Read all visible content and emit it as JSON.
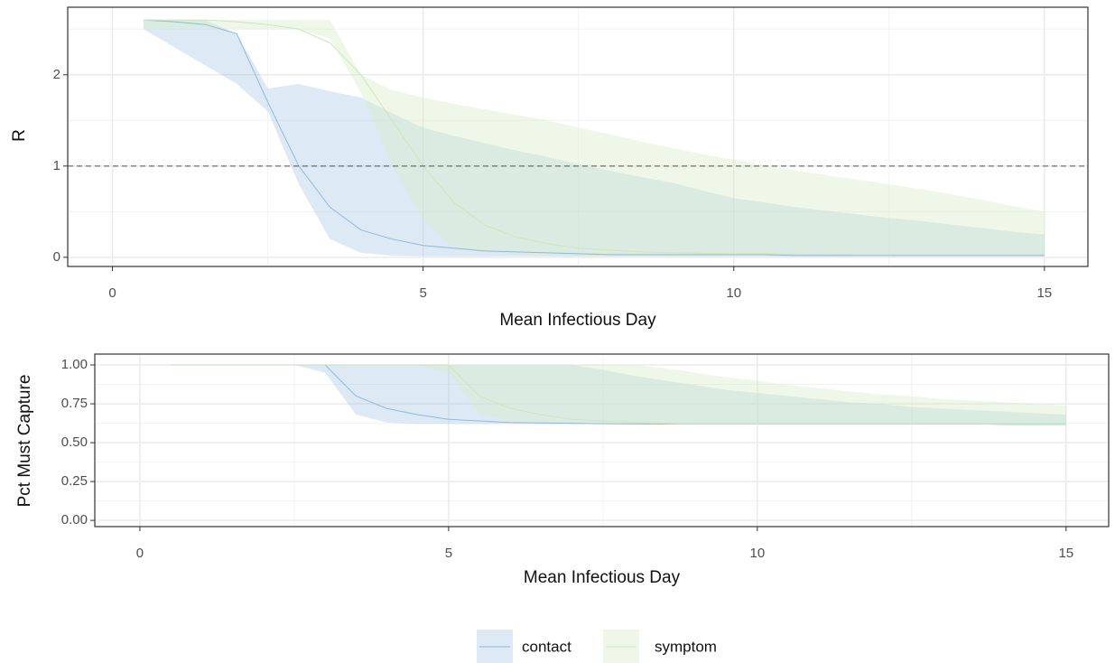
{
  "chart_data": [
    {
      "type": "line",
      "xlabel": "Mean Infectious Day",
      "ylabel": "R",
      "x": [
        0.5,
        1,
        1.5,
        2,
        2.5,
        3,
        3.5,
        4,
        4.5,
        5,
        5.5,
        6,
        6.5,
        7,
        7.5,
        8,
        8.5,
        9,
        9.5,
        10,
        10.5,
        11,
        11.5,
        12,
        12.5,
        13,
        13.5,
        14,
        14.5,
        15
      ],
      "xlim": [
        -0.72,
        15.7
      ],
      "ylim": [
        -0.1,
        2.74
      ],
      "xticks": [
        0,
        5,
        10,
        15
      ],
      "yticks": [
        0,
        1,
        2
      ],
      "minor_xticks": [
        2.5,
        7.5,
        12.5
      ],
      "minor_yticks": [
        0.5,
        1.5,
        2.5
      ],
      "grid": true,
      "hline": 1,
      "series": [
        {
          "name": "contact",
          "color": "#94b8dc",
          "fill": "#a6c8e8",
          "values": [
            2.6,
            2.58,
            2.55,
            2.45,
            1.7,
            1.0,
            0.55,
            0.3,
            0.2,
            0.13,
            0.1,
            0.07,
            0.06,
            0.05,
            0.04,
            0.03,
            0.03,
            0.03,
            0.03,
            0.03,
            0.03,
            0.02,
            0.02,
            0.02,
            0.02,
            0.02,
            0.02,
            0.02,
            0.02,
            0.02
          ],
          "lower": [
            2.5,
            2.3,
            2.1,
            1.9,
            1.6,
            0.8,
            0.2,
            0.05,
            0.02,
            0.01,
            0.01,
            0.01,
            0.01,
            0.01,
            0.01,
            0.01,
            0.01,
            0.01,
            0.01,
            0.01,
            0.01,
            0.01,
            0.01,
            0.01,
            0.01,
            0.01,
            0.01,
            0.01,
            0.01,
            0.01
          ],
          "upper": [
            2.6,
            2.6,
            2.6,
            2.45,
            1.85,
            1.9,
            1.82,
            1.75,
            1.58,
            1.42,
            1.33,
            1.25,
            1.17,
            1.1,
            1.02,
            0.95,
            0.88,
            0.82,
            0.73,
            0.65,
            0.6,
            0.55,
            0.51,
            0.47,
            0.43,
            0.4,
            0.36,
            0.32,
            0.28,
            0.25
          ]
        },
        {
          "name": "symptom",
          "color": "#cfe6bd",
          "fill": "#d5ecc2",
          "values": [
            2.6,
            2.6,
            2.6,
            2.58,
            2.55,
            2.5,
            2.35,
            2.0,
            1.5,
            1.0,
            0.6,
            0.35,
            0.22,
            0.15,
            0.1,
            0.08,
            0.06,
            0.05,
            0.045,
            0.04,
            0.04,
            0.035,
            0.035,
            0.03,
            0.03,
            0.03,
            0.03,
            0.03,
            0.03,
            0.03
          ],
          "lower": [
            2.5,
            2.5,
            2.5,
            2.5,
            2.5,
            2.5,
            2.4,
            1.8,
            1.0,
            0.4,
            0.1,
            0.05,
            0.03,
            0.02,
            0.01,
            0.01,
            0.01,
            0.01,
            0.01,
            0.01,
            0.01,
            0.01,
            0.01,
            0.01,
            0.01,
            0.01,
            0.01,
            0.01,
            0.01,
            0.01
          ],
          "upper": [
            2.6,
            2.6,
            2.6,
            2.6,
            2.6,
            2.6,
            2.6,
            2.0,
            1.83,
            1.75,
            1.68,
            1.62,
            1.56,
            1.5,
            1.42,
            1.35,
            1.27,
            1.2,
            1.13,
            1.07,
            1.01,
            0.95,
            0.9,
            0.85,
            0.8,
            0.75,
            0.69,
            0.63,
            0.56,
            0.5
          ]
        }
      ]
    },
    {
      "type": "line",
      "xlabel": "Mean Infectious Day",
      "ylabel": "Pct Must Capture",
      "x": [
        0.5,
        1,
        1.5,
        2,
        2.5,
        3,
        3.5,
        4,
        4.5,
        5,
        5.5,
        6,
        6.5,
        7,
        7.5,
        8,
        8.5,
        9,
        9.5,
        10,
        10.5,
        11,
        11.5,
        12,
        12.5,
        13,
        13.5,
        14,
        14.5,
        15
      ],
      "xlim": [
        -0.73,
        15.69
      ],
      "ylim": [
        -0.04,
        1.07
      ],
      "xticks": [
        0,
        5,
        10,
        15
      ],
      "yticks": [
        {
          "value": 0,
          "label": "0.00"
        },
        {
          "value": 0.25,
          "label": "0.25"
        },
        {
          "value": 0.5,
          "label": "0.50"
        },
        {
          "value": 0.75,
          "label": "0.75"
        },
        {
          "value": 1,
          "label": "1.00"
        }
      ],
      "minor_xticks": [
        2.5,
        7.5,
        12.5
      ],
      "minor_yticks": [
        0.125,
        0.375,
        0.625,
        0.875
      ],
      "grid": true,
      "series": [
        {
          "color": "#94b8dc",
          "fill": "#a6c8e8",
          "values": [
            1,
            1,
            1,
            1,
            1,
            1,
            0.8,
            0.72,
            0.68,
            0.65,
            0.64,
            0.63,
            0.627,
            0.625,
            0.622,
            0.62,
            0.62,
            0.62,
            0.62,
            0.62,
            0.62,
            0.62,
            0.62,
            0.62,
            0.62,
            0.62,
            0.62,
            0.62,
            0.62,
            0.62
          ],
          "lower": [
            1,
            1,
            1,
            1,
            1,
            0.95,
            0.68,
            0.63,
            0.62,
            0.62,
            0.62,
            0.62,
            0.62,
            0.62,
            0.62,
            0.62,
            0.62,
            0.62,
            0.62,
            0.62,
            0.62,
            0.62,
            0.62,
            0.62,
            0.62,
            0.62,
            0.62,
            0.61,
            0.61,
            0.61
          ],
          "upper": [
            1,
            1,
            1,
            1,
            1,
            1,
            1,
            1,
            1,
            1,
            1,
            1,
            1,
            1,
            0.97,
            0.93,
            0.9,
            0.87,
            0.84,
            0.82,
            0.8,
            0.78,
            0.76,
            0.75,
            0.73,
            0.72,
            0.71,
            0.7,
            0.69,
            0.68
          ]
        },
        {
          "color": "#cfe6bd",
          "fill": "#d5ecc2",
          "values": [
            1,
            1,
            1,
            1,
            1,
            1,
            1,
            1,
            1,
            1,
            0.8,
            0.72,
            0.68,
            0.65,
            0.64,
            0.63,
            0.625,
            0.62,
            0.62,
            0.62,
            0.62,
            0.62,
            0.62,
            0.62,
            0.62,
            0.62,
            0.62,
            0.62,
            0.62,
            0.62
          ],
          "lower": [
            1,
            1,
            1,
            1,
            1,
            1,
            1,
            1,
            1,
            0.95,
            0.68,
            0.64,
            0.63,
            0.62,
            0.62,
            0.62,
            0.62,
            0.62,
            0.62,
            0.62,
            0.62,
            0.62,
            0.62,
            0.62,
            0.62,
            0.62,
            0.62,
            0.61,
            0.61,
            0.61
          ],
          "upper": [
            1,
            1,
            1,
            1,
            1,
            1,
            1,
            1,
            1,
            1,
            1,
            1,
            1,
            1,
            1,
            1,
            0.98,
            0.95,
            0.92,
            0.9,
            0.87,
            0.85,
            0.83,
            0.81,
            0.8,
            0.78,
            0.77,
            0.76,
            0.75,
            0.74
          ]
        }
      ]
    }
  ]
}
